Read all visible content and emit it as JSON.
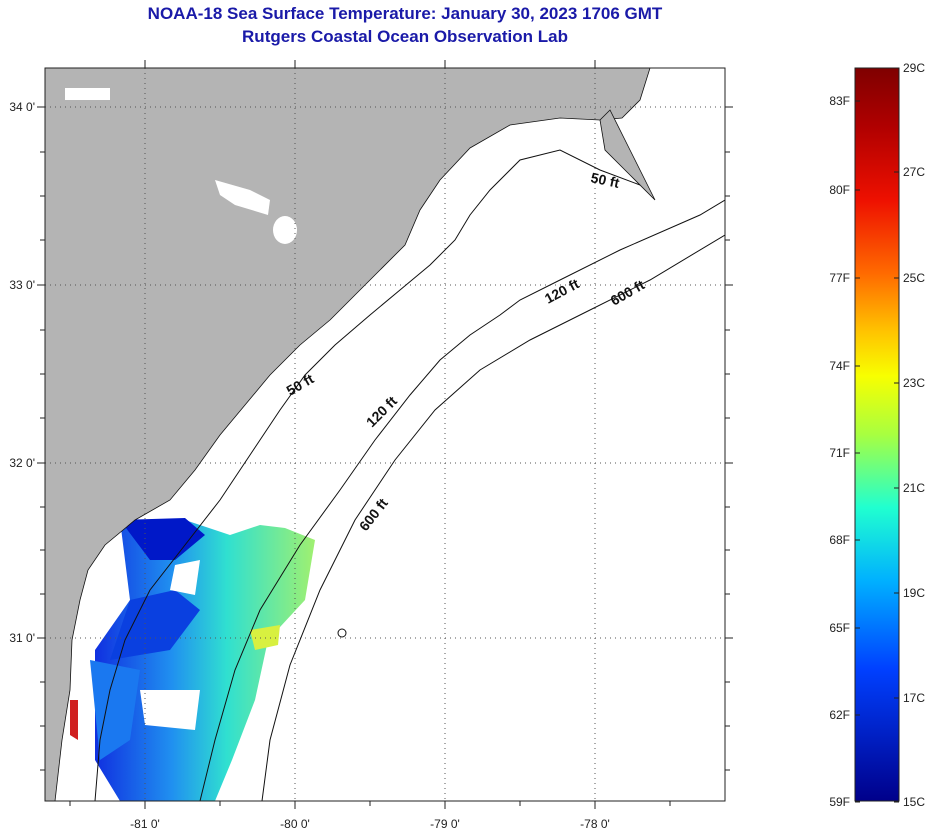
{
  "title": {
    "line1": "NOAA-18 Sea Surface Temperature:  January 30, 2023 1706 GMT",
    "line2": "Rutgers Coastal Ocean Observation Lab"
  },
  "map": {
    "lon_labels": [
      "-81 0'",
      "-80 0'",
      "-79 0'",
      "-78 0'"
    ],
    "lat_labels": [
      "34 0'",
      "33 0'",
      "32 0'",
      "31 0'"
    ],
    "contour_labels": [
      "50 ft",
      "50 ft",
      "120 ft",
      "120 ft",
      "600 ft",
      "600 ft"
    ]
  },
  "colorbar": {
    "fahrenheit": [
      "83F",
      "80F",
      "77F",
      "74F",
      "71F",
      "68F",
      "65F",
      "62F",
      "59F"
    ],
    "celsius": [
      "29C",
      "27C",
      "25C",
      "23C",
      "21C",
      "19C",
      "17C",
      "15C"
    ],
    "colors": [
      "#7f0000",
      "#d40000",
      "#ff5a00",
      "#ffb400",
      "#f0ff00",
      "#a0ff50",
      "#30ffc0",
      "#00c8ff",
      "#0070ff",
      "#0018e0",
      "#00008f"
    ]
  }
}
